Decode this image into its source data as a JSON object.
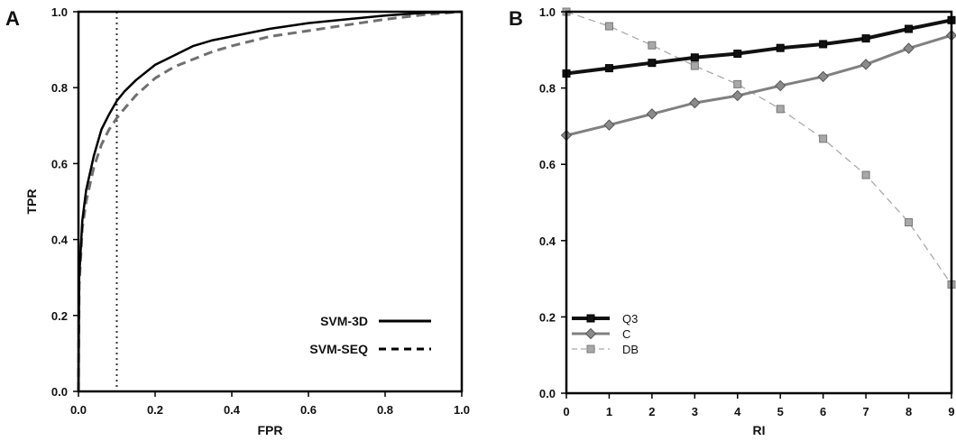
{
  "chart_data": [
    {
      "panel": "A",
      "type": "line",
      "xlabel": "FPR",
      "ylabel": "TPR",
      "xlim": [
        0,
        1
      ],
      "ylim": [
        0,
        1
      ],
      "x_ticks": [
        "0.0",
        "0.2",
        "0.4",
        "0.6",
        "0.8",
        "1.0"
      ],
      "y_ticks": [
        "0.0",
        "0.2",
        "0.4",
        "0.6",
        "0.8",
        "1.0"
      ],
      "grid": false,
      "legend_position": "bottom-right",
      "reference_line": {
        "axis": "x",
        "value": 0.1,
        "style": "dotted"
      },
      "series": [
        {
          "name": "SVM-3D",
          "style": "solid",
          "color": "#000000",
          "points": [
            [
              0,
              0
            ],
            [
              0.002,
              0.3
            ],
            [
              0.01,
              0.45
            ],
            [
              0.02,
              0.53
            ],
            [
              0.04,
              0.62
            ],
            [
              0.06,
              0.69
            ],
            [
              0.08,
              0.73
            ],
            [
              0.1,
              0.765
            ],
            [
              0.12,
              0.79
            ],
            [
              0.15,
              0.82
            ],
            [
              0.2,
              0.86
            ],
            [
              0.25,
              0.885
            ],
            [
              0.3,
              0.91
            ],
            [
              0.35,
              0.925
            ],
            [
              0.4,
              0.935
            ],
            [
              0.5,
              0.955
            ],
            [
              0.6,
              0.97
            ],
            [
              0.7,
              0.98
            ],
            [
              0.8,
              0.99
            ],
            [
              0.9,
              0.997
            ],
            [
              1,
              1
            ]
          ]
        },
        {
          "name": "SVM-SEQ",
          "style": "dashed",
          "color": "#707070",
          "points": [
            [
              0,
              0
            ],
            [
              0.002,
              0.28
            ],
            [
              0.01,
              0.43
            ],
            [
              0.02,
              0.5
            ],
            [
              0.04,
              0.59
            ],
            [
              0.06,
              0.65
            ],
            [
              0.08,
              0.69
            ],
            [
              0.1,
              0.72
            ],
            [
              0.12,
              0.745
            ],
            [
              0.15,
              0.78
            ],
            [
              0.2,
              0.825
            ],
            [
              0.25,
              0.855
            ],
            [
              0.3,
              0.875
            ],
            [
              0.35,
              0.895
            ],
            [
              0.4,
              0.91
            ],
            [
              0.5,
              0.935
            ],
            [
              0.6,
              0.95
            ],
            [
              0.7,
              0.965
            ],
            [
              0.8,
              0.98
            ],
            [
              0.9,
              0.992
            ],
            [
              1,
              1
            ]
          ]
        }
      ]
    },
    {
      "panel": "B",
      "type": "line",
      "xlabel": "RI",
      "ylabel": "",
      "xlim": [
        0,
        9
      ],
      "ylim": [
        0,
        1
      ],
      "x_ticks": [
        "0",
        "1",
        "2",
        "3",
        "4",
        "5",
        "6",
        "7",
        "8",
        "9"
      ],
      "y_ticks": [
        "0.0",
        "0.2",
        "0.4",
        "0.6",
        "0.8",
        "1.0"
      ],
      "grid": false,
      "legend_position": "bottom-left",
      "x": [
        0,
        1,
        2,
        3,
        4,
        5,
        6,
        7,
        8,
        9
      ],
      "series": [
        {
          "name": "Q3",
          "marker": "square",
          "style": "solid",
          "color": "#111111",
          "values": [
            0.838,
            0.852,
            0.866,
            0.88,
            0.89,
            0.905,
            0.915,
            0.93,
            0.955,
            0.978
          ]
        },
        {
          "name": "C",
          "marker": "diamond",
          "style": "solid",
          "color": "#808080",
          "values": [
            0.676,
            0.703,
            0.732,
            0.761,
            0.78,
            0.806,
            0.83,
            0.862,
            0.904,
            0.938
          ]
        },
        {
          "name": "DB",
          "marker": "square",
          "style": "dashed",
          "color": "#aaaaaa",
          "values": [
            1.0,
            0.962,
            0.912,
            0.858,
            0.81,
            0.745,
            0.667,
            0.572,
            0.448,
            0.285
          ]
        }
      ]
    }
  ]
}
